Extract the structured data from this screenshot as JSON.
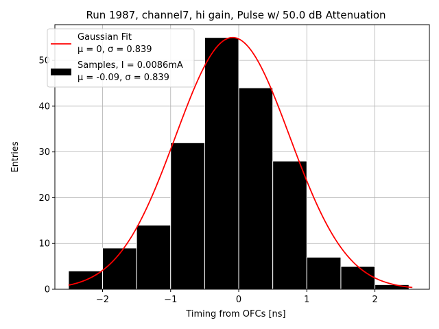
{
  "chart_data": {
    "type": "bar",
    "title": "Run 1987, channel7, hi gain, Pulse w/ 50.0 dB Attenuation",
    "xlabel": "Timing from OFCs [ns]",
    "ylabel": "Entries",
    "xlim": [
      -2.7,
      2.8
    ],
    "ylim": [
      0,
      57.8
    ],
    "xticks": [
      -2,
      -1,
      0,
      1,
      2
    ],
    "xtick_labels": [
      "−2",
      "−1",
      "0",
      "1",
      "2"
    ],
    "yticks": [
      0,
      10,
      20,
      30,
      40,
      50
    ],
    "ytick_labels": [
      "0",
      "10",
      "20",
      "30",
      "40",
      "50"
    ],
    "grid": true,
    "legend_position": "top-left",
    "histogram": {
      "bin_edges": [
        -2.5,
        -2.0,
        -1.5,
        -1.0,
        -0.5,
        0.0,
        0.5,
        1.0,
        1.5,
        2.0,
        2.5
      ],
      "bin_left_edges": [
        -2.5,
        -2.0,
        -1.5,
        -1.0,
        -0.5,
        0.0,
        0.5,
        1.0,
        1.5,
        2.0
      ],
      "counts": [
        4,
        9,
        14,
        32,
        55,
        44,
        28,
        7,
        5,
        1
      ],
      "color": "#000000",
      "legend_line1": "Samples, I = 0.0086mA",
      "legend_line2": "μ = -0.09, σ = 0.839"
    },
    "fit": {
      "type": "gaussian",
      "mu": -0.09,
      "sigma": 0.839,
      "amplitude": 55,
      "x_range": [
        -2.5,
        2.55
      ],
      "color": "#ff0000",
      "legend_line1": "Gaussian Fit",
      "legend_line2": "μ = 0, σ = 0.839"
    }
  }
}
